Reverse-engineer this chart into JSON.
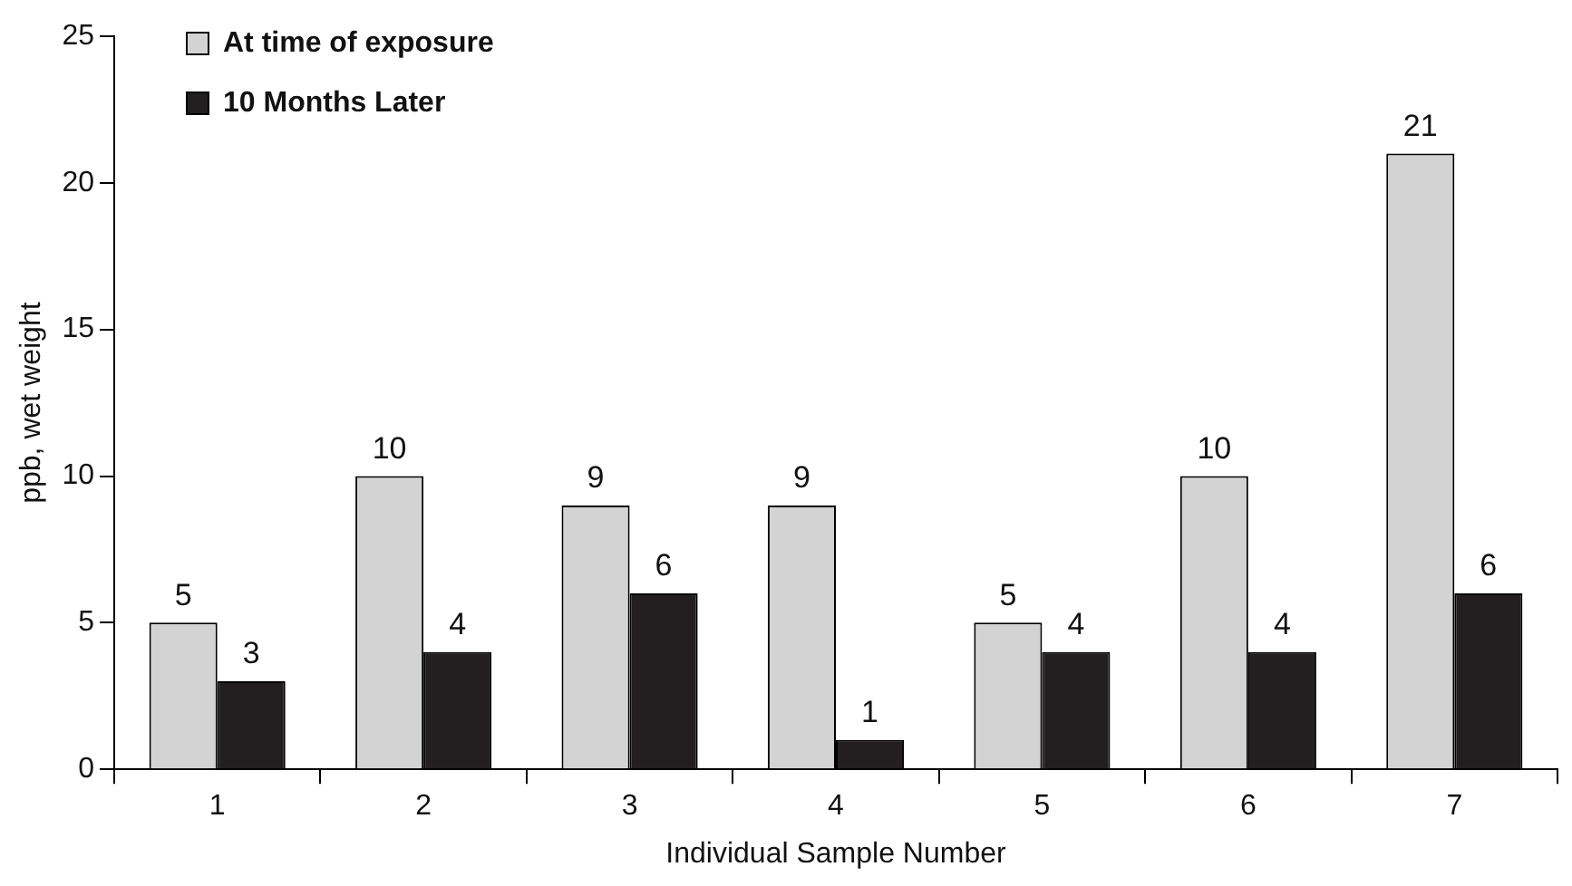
{
  "chart_data": {
    "type": "bar",
    "xlabel": "Individual Sample Number",
    "ylabel": "ppb, wet weight",
    "categories": [
      "1",
      "2",
      "3",
      "4",
      "5",
      "6",
      "7"
    ],
    "series": [
      {
        "name": "At time of exposure",
        "color": "#d3d3d3",
        "values": [
          5,
          10,
          9,
          9,
          5,
          10,
          21
        ]
      },
      {
        "name": "10 Months Later",
        "color": "#231f20",
        "values": [
          3,
          4,
          6,
          1,
          4,
          4,
          6
        ]
      }
    ],
    "ylim": [
      0,
      25
    ],
    "yticks": [
      0,
      5,
      10,
      15,
      20,
      25
    ],
    "grid": false,
    "legend": "top left",
    "data_labels": true
  }
}
